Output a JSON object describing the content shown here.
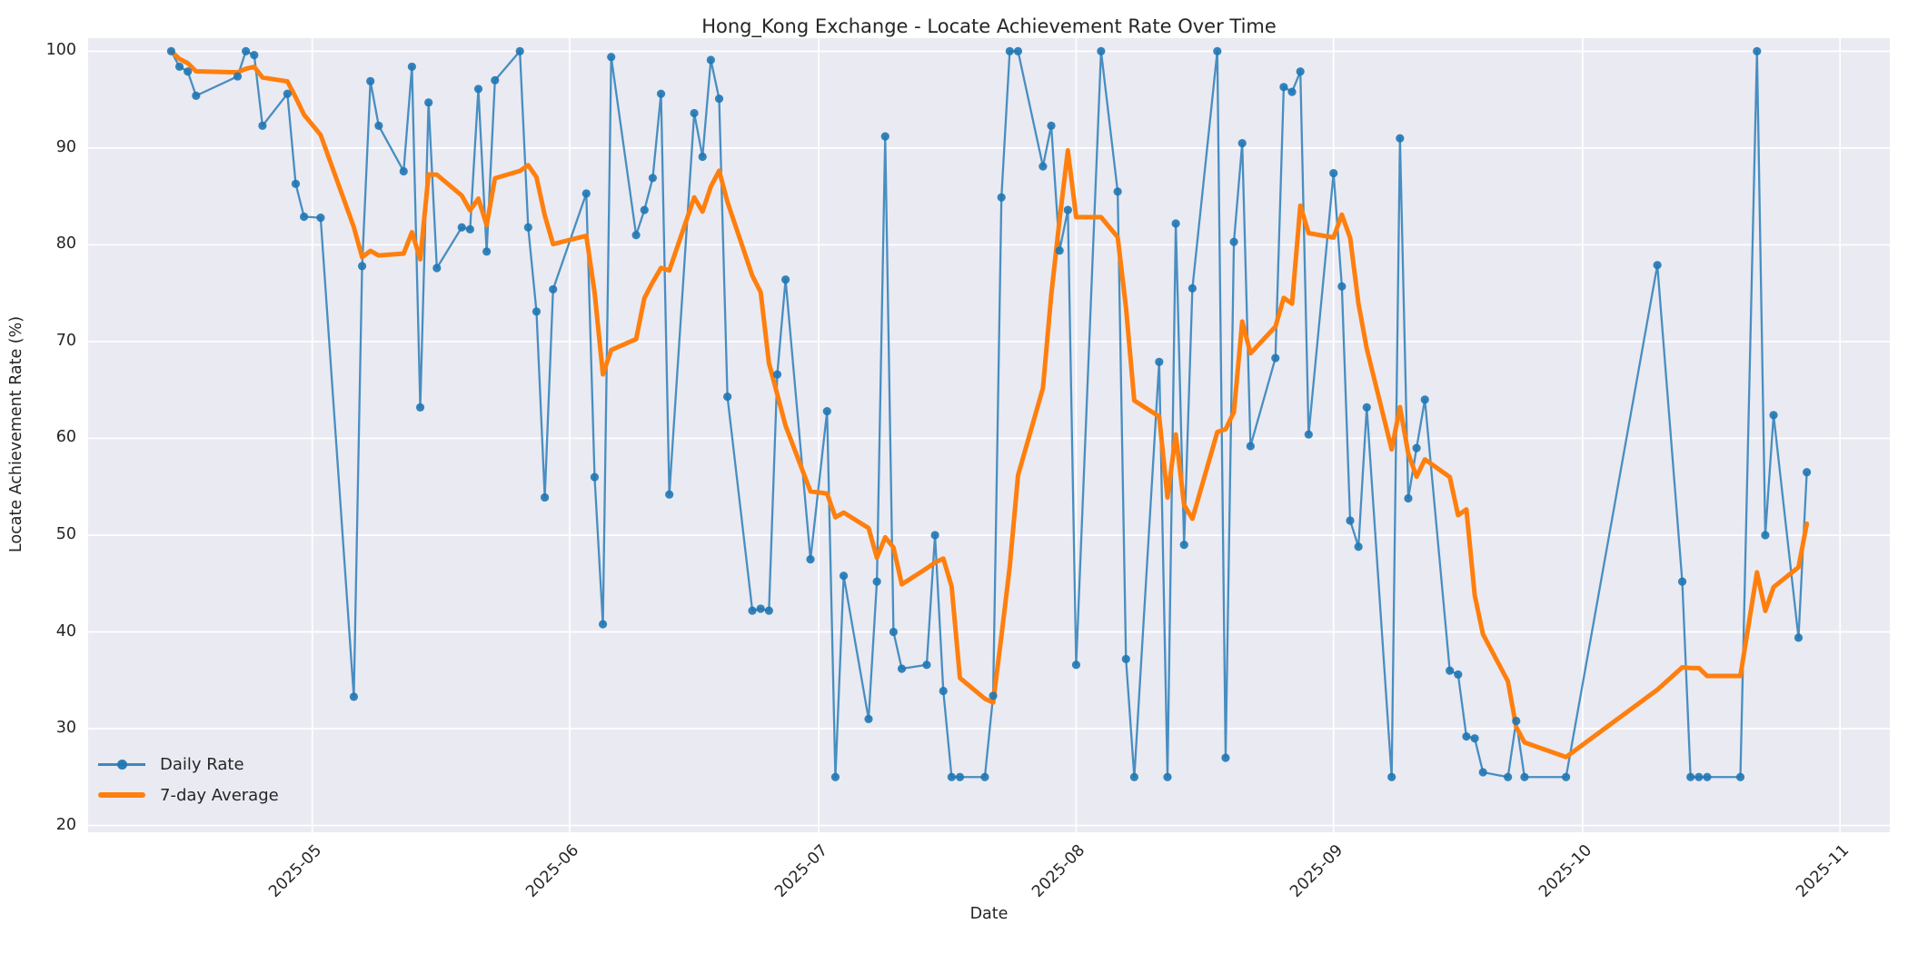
{
  "title": "Hong_Kong Exchange - Locate Achievement Rate Over Time",
  "axes": {
    "xlabel": "Date",
    "ylabel": "Locate Achievement Rate (%)"
  },
  "legend": {
    "position": "lower left",
    "items": [
      {
        "label": "Daily Rate",
        "color": "#1f77b4",
        "style": "line-with-marker"
      },
      {
        "label": "7-day Average",
        "color": "#ff7f0e",
        "style": "thick-line"
      }
    ]
  },
  "colors": {
    "figure_bg": "#ffffff",
    "axes_bg": "#eaeaf2",
    "grid": "#ffffff",
    "daily_line": "#1f77b4",
    "average_line": "#ff7f0e",
    "text": "#262626"
  },
  "chart_data": {
    "type": "line",
    "title": "Hong_Kong Exchange - Locate Achievement Rate Over Time",
    "xlabel": "Date",
    "ylabel": "Locate Achievement Rate (%)",
    "grid": true,
    "legend_position": "lower left",
    "ylim": [
      20,
      100
    ],
    "yticks": [
      20,
      30,
      40,
      50,
      60,
      70,
      80,
      90,
      100
    ],
    "xticks": [
      {
        "label": "2025-05",
        "date": "2025-05-01"
      },
      {
        "label": "2025-06",
        "date": "2025-06-01"
      },
      {
        "label": "2025-07",
        "date": "2025-07-01"
      },
      {
        "label": "2025-08",
        "date": "2025-08-01"
      },
      {
        "label": "2025-09",
        "date": "2025-09-01"
      },
      {
        "label": "2025-10",
        "date": "2025-10-01"
      },
      {
        "label": "2025-11",
        "date": "2025-11-01"
      }
    ],
    "series": [
      {
        "name": "Daily Rate",
        "points": [
          [
            "2025-04-14",
            100.0
          ],
          [
            "2025-04-15",
            98.4
          ],
          [
            "2025-04-16",
            97.9
          ],
          [
            "2025-04-17",
            95.4
          ],
          [
            "2025-04-22",
            97.4
          ],
          [
            "2025-04-23",
            100.0
          ],
          [
            "2025-04-24",
            99.6
          ],
          [
            "2025-04-25",
            92.3
          ],
          [
            "2025-04-28",
            95.6
          ],
          [
            "2025-04-29",
            86.3
          ],
          [
            "2025-04-30",
            82.9
          ],
          [
            "2025-05-02",
            82.8
          ],
          [
            "2025-05-06",
            33.3
          ],
          [
            "2025-05-07",
            77.8
          ],
          [
            "2025-05-08",
            96.9
          ],
          [
            "2025-05-09",
            92.3
          ],
          [
            "2025-05-12",
            87.6
          ],
          [
            "2025-05-13",
            98.4
          ],
          [
            "2025-05-14",
            63.2
          ],
          [
            "2025-05-15",
            94.7
          ],
          [
            "2025-05-16",
            77.6
          ],
          [
            "2025-05-19",
            81.8
          ],
          [
            "2025-05-20",
            81.6
          ],
          [
            "2025-05-21",
            96.1
          ],
          [
            "2025-05-22",
            79.3
          ],
          [
            "2025-05-23",
            97.0
          ],
          [
            "2025-05-26",
            100.0
          ],
          [
            "2025-05-27",
            81.8
          ],
          [
            "2025-05-28",
            73.1
          ],
          [
            "2025-05-29",
            53.9
          ],
          [
            "2025-05-30",
            75.4
          ],
          [
            "2025-06-03",
            85.3
          ],
          [
            "2025-06-04",
            56.0
          ],
          [
            "2025-06-05",
            40.8
          ],
          [
            "2025-06-06",
            99.4
          ],
          [
            "2025-06-09",
            81.0
          ],
          [
            "2025-06-10",
            83.6
          ],
          [
            "2025-06-11",
            86.9
          ],
          [
            "2025-06-12",
            95.6
          ],
          [
            "2025-06-13",
            54.2
          ],
          [
            "2025-06-16",
            93.6
          ],
          [
            "2025-06-17",
            89.1
          ],
          [
            "2025-06-18",
            99.1
          ],
          [
            "2025-06-19",
            95.1
          ],
          [
            "2025-06-20",
            64.3
          ],
          [
            "2025-06-23",
            42.2
          ],
          [
            "2025-06-24",
            42.4
          ],
          [
            "2025-06-25",
            42.2
          ],
          [
            "2025-06-26",
            66.6
          ],
          [
            "2025-06-27",
            76.4
          ],
          [
            "2025-06-30",
            47.5
          ],
          [
            "2025-07-02",
            62.8
          ],
          [
            "2025-07-03",
            25.0
          ],
          [
            "2025-07-04",
            45.8
          ],
          [
            "2025-07-07",
            31.0
          ],
          [
            "2025-07-08",
            45.2
          ],
          [
            "2025-07-09",
            91.2
          ],
          [
            "2025-07-10",
            40.0
          ],
          [
            "2025-07-11",
            36.2
          ],
          [
            "2025-07-14",
            36.6
          ],
          [
            "2025-07-15",
            50.0
          ],
          [
            "2025-07-16",
            33.9
          ],
          [
            "2025-07-17",
            25.0
          ],
          [
            "2025-07-18",
            25.0
          ],
          [
            "2025-07-21",
            25.0
          ],
          [
            "2025-07-22",
            33.4
          ],
          [
            "2025-07-23",
            84.9
          ],
          [
            "2025-07-24",
            100.0
          ],
          [
            "2025-07-25",
            100.0
          ],
          [
            "2025-07-28",
            88.1
          ],
          [
            "2025-07-29",
            92.3
          ],
          [
            "2025-07-30",
            79.4
          ],
          [
            "2025-07-31",
            83.6
          ],
          [
            "2025-08-01",
            36.6
          ],
          [
            "2025-08-04",
            100.0
          ],
          [
            "2025-08-06",
            85.5
          ],
          [
            "2025-08-07",
            37.2
          ],
          [
            "2025-08-08",
            25.0
          ],
          [
            "2025-08-11",
            67.9
          ],
          [
            "2025-08-12",
            25.0
          ],
          [
            "2025-08-13",
            82.2
          ],
          [
            "2025-08-14",
            49.0
          ],
          [
            "2025-08-15",
            75.5
          ],
          [
            "2025-08-18",
            100.0
          ],
          [
            "2025-08-19",
            27.0
          ],
          [
            "2025-08-20",
            80.3
          ],
          [
            "2025-08-21",
            90.5
          ],
          [
            "2025-08-22",
            59.2
          ],
          [
            "2025-08-25",
            68.3
          ],
          [
            "2025-08-26",
            96.3
          ],
          [
            "2025-08-27",
            95.8
          ],
          [
            "2025-08-28",
            97.9
          ],
          [
            "2025-08-29",
            60.4
          ],
          [
            "2025-09-01",
            87.4
          ],
          [
            "2025-09-02",
            75.7
          ],
          [
            "2025-09-03",
            51.5
          ],
          [
            "2025-09-04",
            48.8
          ],
          [
            "2025-09-05",
            63.2
          ],
          [
            "2025-09-08",
            25.0
          ],
          [
            "2025-09-09",
            91.0
          ],
          [
            "2025-09-10",
            53.8
          ],
          [
            "2025-09-11",
            59.0
          ],
          [
            "2025-09-12",
            64.0
          ],
          [
            "2025-09-15",
            36.0
          ],
          [
            "2025-09-16",
            35.6
          ],
          [
            "2025-09-17",
            29.2
          ],
          [
            "2025-09-18",
            29.0
          ],
          [
            "2025-09-19",
            25.5
          ],
          [
            "2025-09-22",
            25.0
          ],
          [
            "2025-09-23",
            30.8
          ],
          [
            "2025-09-24",
            25.0
          ],
          [
            "2025-09-29",
            25.0
          ],
          [
            "2025-10-10",
            77.9
          ],
          [
            "2025-10-13",
            45.2
          ],
          [
            "2025-10-14",
            25.0
          ],
          [
            "2025-10-15",
            25.0
          ],
          [
            "2025-10-16",
            25.0
          ],
          [
            "2025-10-20",
            25.0
          ],
          [
            "2025-10-22",
            100.0
          ],
          [
            "2025-10-23",
            50.0
          ],
          [
            "2025-10-24",
            62.4
          ],
          [
            "2025-10-27",
            39.4
          ],
          [
            "2025-10-28",
            56.5
          ]
        ]
      },
      {
        "name": "7-day Average",
        "derivation": "rolling mean of the last 7 Daily Rate observations (min_periods=1)"
      }
    ]
  }
}
